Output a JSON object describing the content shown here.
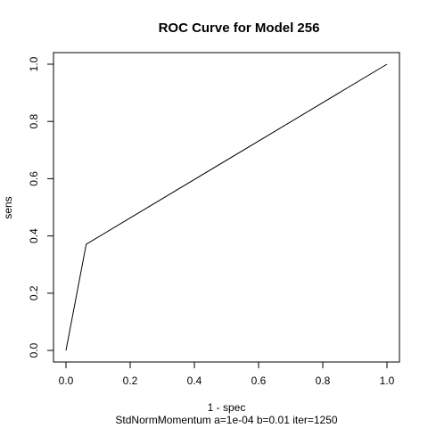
{
  "chart_data": {
    "type": "line",
    "title": "ROC Curve for Model 256",
    "xlabel": "1 - spec",
    "ylabel": "sens",
    "subtitle": "StdNormMomentum a=1e-04 b=0.01 iter=1250",
    "xlim": [
      0,
      1
    ],
    "ylim": [
      0,
      1
    ],
    "x_ticks": [
      "0.0",
      "0.2",
      "0.4",
      "0.6",
      "0.8",
      "1.0"
    ],
    "y_ticks": [
      "0.0",
      "0.2",
      "0.4",
      "0.6",
      "0.8",
      "1.0"
    ],
    "grid": false,
    "series": [
      {
        "x": [
          0.0,
          0.063,
          1.0
        ],
        "y": [
          0.0,
          0.371,
          1.0
        ]
      }
    ],
    "colors": {
      "line": "#000000"
    }
  }
}
